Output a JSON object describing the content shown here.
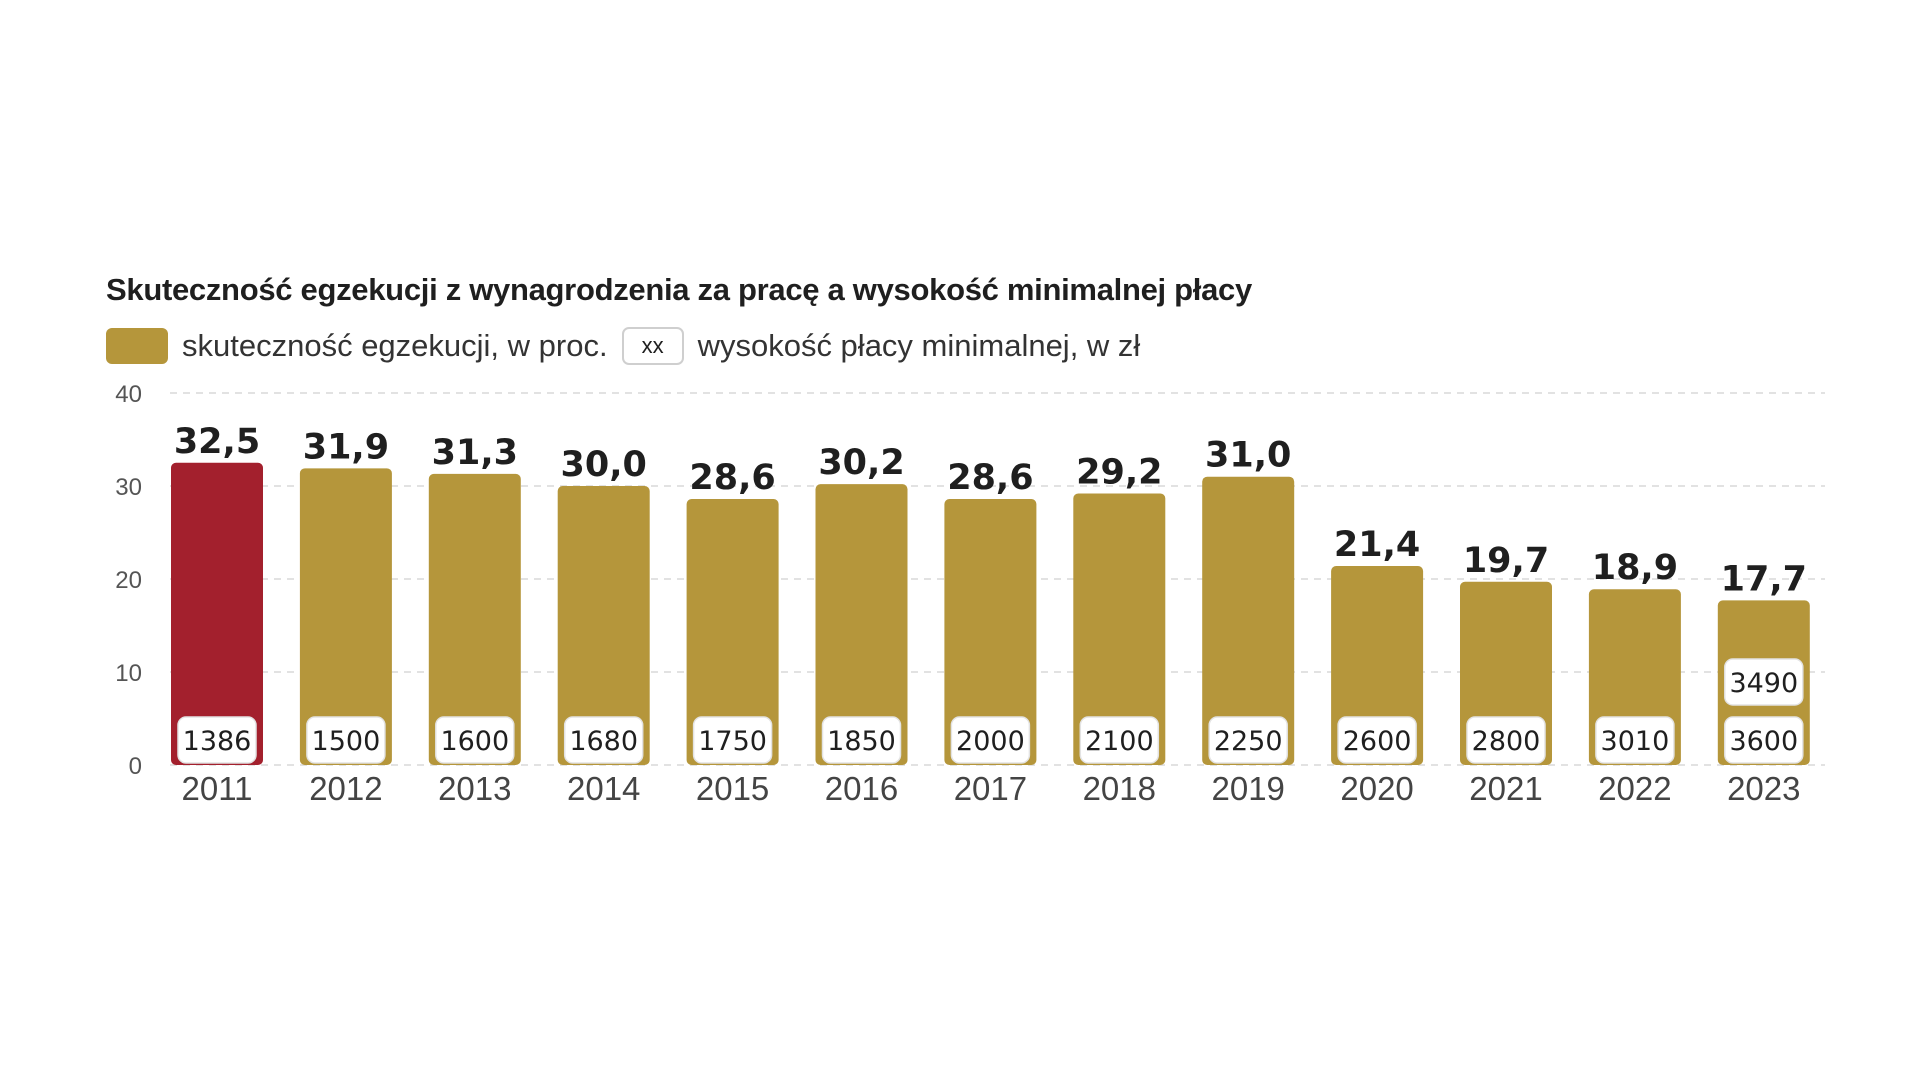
{
  "chart_data": {
    "type": "bar",
    "title": "Skuteczność egzekucji z wynagrodzenia za pracę a wysokość minimalnej płacy",
    "legend": {
      "series_label": "skuteczność egzekucji, w proc.",
      "box_symbol": "xx",
      "box_label": "wysokość płacy minimalnej, w zł"
    },
    "categories": [
      "2011",
      "2012",
      "2013",
      "2014",
      "2015",
      "2016",
      "2017",
      "2018",
      "2019",
      "2020",
      "2021",
      "2022",
      "2023"
    ],
    "values": [
      32.5,
      31.9,
      31.3,
      30.0,
      28.6,
      30.2,
      28.6,
      29.2,
      31.0,
      21.4,
      19.7,
      18.9,
      17.7
    ],
    "value_labels": [
      "32,5",
      "31,9",
      "31,3",
      "30,0",
      "28,6",
      "30,2",
      "28,6",
      "29,2",
      "31,0",
      "21,4",
      "19,7",
      "18,9",
      "17,7"
    ],
    "minimum_wage": [
      [
        "1386"
      ],
      [
        "1500"
      ],
      [
        "1600"
      ],
      [
        "1680"
      ],
      [
        "1750"
      ],
      [
        "1850"
      ],
      [
        "2000"
      ],
      [
        "2100"
      ],
      [
        "2250"
      ],
      [
        "2600"
      ],
      [
        "2800"
      ],
      [
        "3010"
      ],
      [
        "3600",
        "3490"
      ]
    ],
    "ylim": [
      0,
      40
    ],
    "yticks": [
      "0",
      "10",
      "20",
      "30",
      "40"
    ],
    "xlabel": "",
    "ylabel": "",
    "grid": true,
    "colors": {
      "bar": "#b5963b",
      "highlight": "#a3202d",
      "highlight_index": 0,
      "grid": "#d9d9d9"
    }
  }
}
